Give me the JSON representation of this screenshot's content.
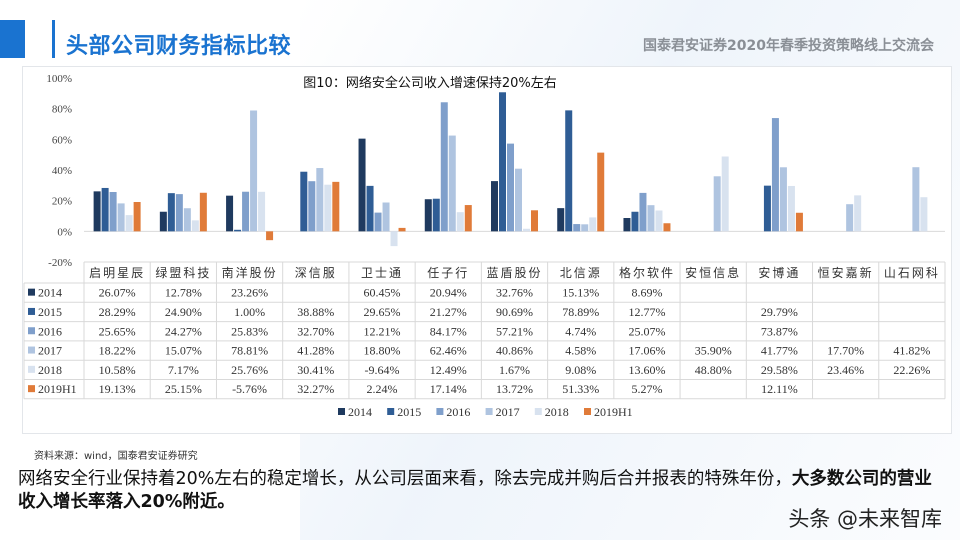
{
  "header": {
    "title": "头部公司财务指标比较",
    "subtitle": "国泰君安证券2020年春季投资策略线上交流会"
  },
  "chart_data": {
    "type": "bar",
    "title": "图10：网络安全公司收入增速保持20%左右",
    "categories": [
      "启明星辰",
      "绿盟科技",
      "南洋股份",
      "深信服",
      "卫士通",
      "任子行",
      "蓝盾股份",
      "北信源",
      "格尔软件",
      "安恒信息",
      "安博通",
      "恒安嘉新",
      "山石网科"
    ],
    "yticks": [
      "100%",
      "80%",
      "60%",
      "40%",
      "20%",
      "0%",
      "-20%"
    ],
    "ylim": [
      -20,
      100
    ],
    "legend_position": "bottom",
    "series": [
      {
        "name": "2014",
        "color": "#1f3a5f",
        "values": [
          26.07,
          12.78,
          23.26,
          null,
          60.45,
          20.94,
          32.76,
          15.13,
          8.69,
          null,
          null,
          null,
          null
        ],
        "labels": [
          "26.07%",
          "12.78%",
          "23.26%",
          "",
          "60.45%",
          "20.94%",
          "32.76%",
          "15.13%",
          "8.69%",
          "",
          "",
          "",
          ""
        ]
      },
      {
        "name": "2015",
        "color": "#2f5d95",
        "values": [
          28.29,
          24.9,
          1.0,
          38.88,
          29.65,
          21.27,
          90.69,
          78.89,
          12.77,
          null,
          29.79,
          null,
          null
        ],
        "labels": [
          "28.29%",
          "24.90%",
          "1.00%",
          "38.88%",
          "29.65%",
          "21.27%",
          "90.69%",
          "78.89%",
          "12.77%",
          "",
          "29.79%",
          "",
          ""
        ]
      },
      {
        "name": "2016",
        "color": "#7f9fcb",
        "values": [
          25.65,
          24.27,
          25.83,
          32.7,
          12.21,
          84.17,
          57.21,
          4.74,
          25.07,
          null,
          73.87,
          null,
          null
        ],
        "labels": [
          "25.65%",
          "24.27%",
          "25.83%",
          "32.70%",
          "12.21%",
          "84.17%",
          "57.21%",
          "4.74%",
          "25.07%",
          "",
          "73.87%",
          "",
          ""
        ]
      },
      {
        "name": "2017",
        "color": "#afc4e0",
        "values": [
          18.22,
          15.07,
          78.81,
          41.28,
          18.8,
          62.46,
          40.86,
          4.58,
          17.06,
          35.9,
          41.77,
          17.7,
          41.82
        ],
        "labels": [
          "18.22%",
          "15.07%",
          "78.81%",
          "41.28%",
          "18.80%",
          "62.46%",
          "40.86%",
          "4.58%",
          "17.06%",
          "35.90%",
          "41.77%",
          "17.70%",
          "41.82%"
        ]
      },
      {
        "name": "2018",
        "color": "#d8e2ef",
        "values": [
          10.58,
          7.17,
          25.76,
          30.41,
          -9.64,
          12.49,
          1.67,
          9.08,
          13.6,
          48.8,
          29.58,
          23.46,
          22.26
        ],
        "labels": [
          "10.58%",
          "7.17%",
          "25.76%",
          "30.41%",
          "-9.64%",
          "12.49%",
          "1.67%",
          "9.08%",
          "13.60%",
          "48.80%",
          "29.58%",
          "23.46%",
          "22.26%"
        ]
      },
      {
        "name": "2019H1",
        "color": "#e07b39",
        "values": [
          19.13,
          25.15,
          -5.76,
          32.27,
          2.24,
          17.14,
          13.72,
          51.33,
          5.27,
          null,
          12.11,
          null,
          null
        ],
        "labels": [
          "19.13%",
          "25.15%",
          "-5.76%",
          "32.27%",
          "2.24%",
          "17.14%",
          "13.72%",
          "51.33%",
          "5.27%",
          "",
          "12.11%",
          "",
          ""
        ]
      }
    ]
  },
  "source": "资料来源：wind，国泰君安证券研究",
  "paragraph": {
    "normal": "网络安全行业保持着20%左右的稳定增长，从公司层面来看，除去完成并购后合并报表的特殊年份，",
    "bold": "大多数公司的营业收入增长率落入20%附近。"
  },
  "watermark": "头条 @未来智库"
}
